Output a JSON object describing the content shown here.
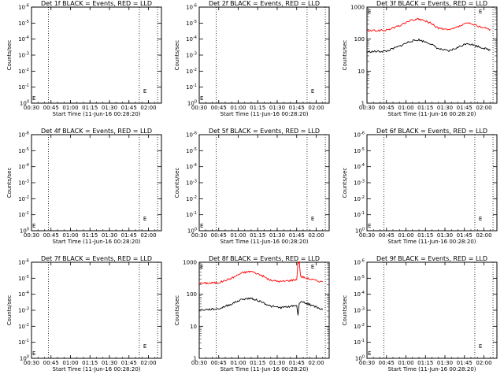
{
  "colors": {
    "background": "#ffffff",
    "axes": "#000000",
    "events": "#000000",
    "lld": "#ff0000"
  },
  "chart_data": [
    {
      "type": "line",
      "title": "Det 1f BLACK = Events, RED = LLD",
      "xlabel": "Start Time (11-Jun-16 00:28:20)",
      "ylabel": "Counts/sec",
      "xlim": [
        "00:30",
        "02:10"
      ],
      "x_ticks": [
        "00:30",
        "00:45",
        "01:00",
        "01:15",
        "01:30",
        "01:45",
        "02:00"
      ],
      "y_scale": "log",
      "y_ticks": [
        "10^0",
        "10^-1",
        "10^-2",
        "10^-3",
        "10^-4",
        "10^-5",
        "10^-6"
      ],
      "vlines_dotted": [
        "00:43",
        "01:53",
        "02:07"
      ],
      "marker_E": {
        "x": "01:56",
        "y_exp": -0.65
      },
      "series": []
    },
    {
      "type": "line",
      "title": "Det 2f BLACK = Events, RED = LLD",
      "xlabel": "Start Time (11-Jun-16 00:28:20)",
      "ylabel": "Counts/sec",
      "xlim": [
        "00:30",
        "02:10"
      ],
      "x_ticks": [
        "00:30",
        "00:45",
        "01:00",
        "01:15",
        "01:30",
        "01:45",
        "02:00"
      ],
      "y_scale": "log",
      "y_ticks": [
        "10^0",
        "10^-1",
        "10^-2",
        "10^-3",
        "10^-4",
        "10^-5",
        "10^-6"
      ],
      "vlines_dotted": [
        "00:43",
        "01:53",
        "02:07"
      ],
      "marker_E": {
        "x": "01:56",
        "y_exp": -0.65
      },
      "series": []
    },
    {
      "type": "line",
      "title": "Det 3f BLACK = Events, RED = LLD",
      "xlabel": "Start Time (11-Jun-16 00:28:20)",
      "ylabel": "Counts/sec",
      "xlim": [
        "00:30",
        "02:10"
      ],
      "x_ticks": [
        "00:30",
        "00:45",
        "01:00",
        "01:15",
        "01:30",
        "01:45",
        "02:00"
      ],
      "y_scale": "log",
      "ylim": [
        1,
        1000
      ],
      "y_ticks": [
        "1",
        "10",
        "100",
        "1000"
      ],
      "vlines_dotted": [
        "00:43",
        "01:53",
        "02:07"
      ],
      "marker_E": {
        "x": "01:56",
        "y_val": 900
      },
      "series": [
        {
          "color": "#ff0000",
          "x": [
            "00:30",
            "00:45",
            "00:55",
            "01:03",
            "01:10",
            "01:18",
            "01:25",
            "01:33",
            "01:40",
            "01:47",
            "01:55",
            "02:05"
          ],
          "y": [
            180,
            190,
            260,
            380,
            420,
            330,
            220,
            190,
            240,
            320,
            260,
            200
          ]
        },
        {
          "color": "#000000",
          "x": [
            "00:30",
            "00:45",
            "00:55",
            "01:03",
            "01:10",
            "01:18",
            "01:25",
            "01:33",
            "01:40",
            "01:47",
            "01:55",
            "02:05"
          ],
          "y": [
            40,
            42,
            60,
            85,
            95,
            75,
            50,
            42,
            55,
            75,
            60,
            45
          ]
        }
      ]
    },
    {
      "type": "line",
      "title": "Det 4f BLACK = Events, RED = LLD",
      "xlabel": "Start Time (11-Jun-16 00:28:20)",
      "ylabel": "Counts/sec",
      "xlim": [
        "00:30",
        "02:10"
      ],
      "x_ticks": [
        "00:30",
        "00:45",
        "01:00",
        "01:15",
        "01:30",
        "01:45",
        "02:00"
      ],
      "y_scale": "log",
      "y_ticks": [
        "10^0",
        "10^-1",
        "10^-2",
        "10^-3",
        "10^-4",
        "10^-5",
        "10^-6"
      ],
      "vlines_dotted": [
        "00:43",
        "01:53",
        "02:07"
      ],
      "marker_E": {
        "x": "01:56",
        "y_exp": -0.65
      },
      "series": []
    },
    {
      "type": "line",
      "title": "Det 5f BLACK = Events, RED = LLD",
      "xlabel": "Start Time (11-Jun-16 00:28:20)",
      "ylabel": "Counts/sec",
      "xlim": [
        "00:30",
        "02:10"
      ],
      "x_ticks": [
        "00:30",
        "00:45",
        "01:00",
        "01:15",
        "01:30",
        "01:45",
        "02:00"
      ],
      "y_scale": "log",
      "y_ticks": [
        "10^0",
        "10^-1",
        "10^-2",
        "10^-3",
        "10^-4",
        "10^-5",
        "10^-6"
      ],
      "vlines_dotted": [
        "00:43",
        "01:53",
        "02:07"
      ],
      "marker_E": {
        "x": "01:56",
        "y_exp": -0.65
      },
      "series": []
    },
    {
      "type": "line",
      "title": "Det 6f BLACK = Events, RED = LLD",
      "xlabel": "Start Time (11-Jun-16 00:28:20)",
      "ylabel": "Counts/sec",
      "xlim": [
        "00:30",
        "02:10"
      ],
      "x_ticks": [
        "00:30",
        "00:45",
        "01:00",
        "01:15",
        "01:30",
        "01:45",
        "02:00"
      ],
      "y_scale": "log",
      "y_ticks": [
        "10^0",
        "10^-1",
        "10^-2",
        "10^-3",
        "10^-4",
        "10^-5",
        "10^-6"
      ],
      "vlines_dotted": [
        "00:43",
        "01:53",
        "02:07"
      ],
      "marker_E": {
        "x": "01:56",
        "y_exp": -0.65
      },
      "series": []
    },
    {
      "type": "line",
      "title": "Det 7f BLACK = Events, RED = LLD",
      "xlabel": "Start Time (11-Jun-16 00:28:20)",
      "ylabel": "Counts/sec",
      "xlim": [
        "00:30",
        "02:10"
      ],
      "x_ticks": [
        "00:30",
        "00:45",
        "01:00",
        "01:15",
        "01:30",
        "01:45",
        "02:00"
      ],
      "y_scale": "log",
      "y_ticks": [
        "10^0",
        "10^-1",
        "10^-2",
        "10^-3",
        "10^-4",
        "10^-5",
        "10^-6"
      ],
      "vlines_dotted": [
        "00:43",
        "01:53",
        "02:07"
      ],
      "marker_E": {
        "x": "01:56",
        "y_exp": -0.65
      },
      "series": []
    },
    {
      "type": "line",
      "title": "Det 8f BLACK = Events, RED = LLD",
      "xlabel": "Start Time (11-Jun-16 00:28:20)",
      "ylabel": "Counts/sec",
      "xlim": [
        "00:30",
        "02:10"
      ],
      "x_ticks": [
        "00:30",
        "00:45",
        "01:00",
        "01:15",
        "01:30",
        "01:45",
        "02:00"
      ],
      "y_scale": "log",
      "ylim": [
        1,
        1000
      ],
      "y_ticks": [
        "1",
        "10",
        "100",
        "1000"
      ],
      "vlines_dotted": [
        "00:43",
        "01:53",
        "02:07"
      ],
      "marker_E": {
        "x": "01:56",
        "y_val": 900
      },
      "series": [
        {
          "color": "#ff0000",
          "x": [
            "00:30",
            "00:45",
            "00:55",
            "01:03",
            "01:10",
            "01:18",
            "01:25",
            "01:33",
            "01:40",
            "01:45",
            "01:46",
            "01:47",
            "01:48",
            "01:55",
            "02:05"
          ],
          "y": [
            220,
            230,
            320,
            470,
            520,
            390,
            270,
            250,
            270,
            290,
            1000,
            1000,
            360,
            300,
            240
          ]
        },
        {
          "color": "#000000",
          "x": [
            "00:30",
            "00:45",
            "00:55",
            "01:03",
            "01:10",
            "01:18",
            "01:25",
            "01:33",
            "01:40",
            "01:45",
            "01:46",
            "01:47",
            "01:48",
            "01:55",
            "02:05"
          ],
          "y": [
            32,
            35,
            50,
            70,
            75,
            58,
            42,
            38,
            42,
            45,
            22,
            55,
            60,
            48,
            33
          ]
        }
      ]
    },
    {
      "type": "line",
      "title": "Det 9f BLACK = Events, RED = LLD",
      "xlabel": "Start Time (11-Jun-16 00:28:20)",
      "ylabel": "Counts/sec",
      "xlim": [
        "00:30",
        "02:10"
      ],
      "x_ticks": [
        "00:30",
        "00:45",
        "01:00",
        "01:15",
        "01:30",
        "01:45",
        "02:00"
      ],
      "y_scale": "log",
      "y_ticks": [
        "10^0",
        "10^-1",
        "10^-2",
        "10^-3",
        "10^-4",
        "10^-5",
        "10^-6"
      ],
      "vlines_dotted": [
        "00:43",
        "01:53",
        "02:07"
      ],
      "marker_E": {
        "x": "01:56",
        "y_exp": -0.65
      },
      "series": []
    }
  ]
}
